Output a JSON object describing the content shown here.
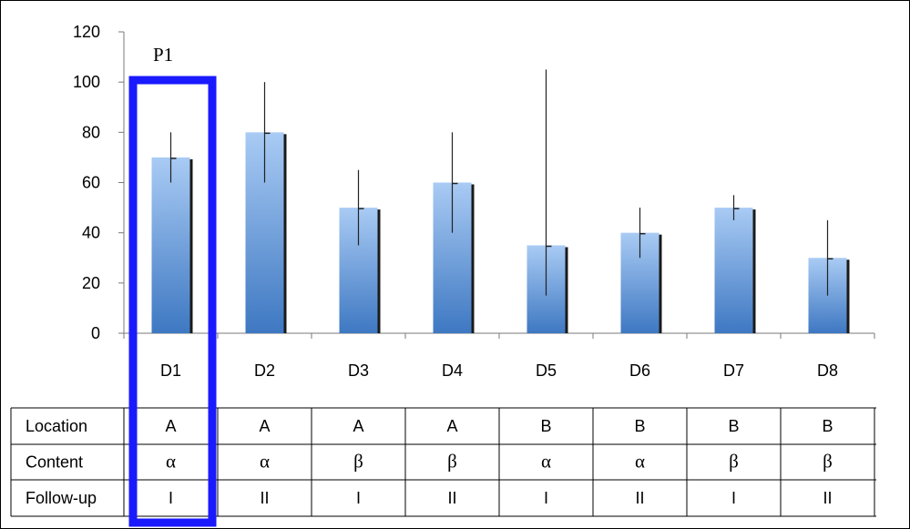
{
  "chart_data": {
    "type": "bar",
    "title": "",
    "xlabel": "",
    "ylabel": "",
    "ylim": [
      0,
      120
    ],
    "yticks": [
      0,
      20,
      40,
      60,
      80,
      100,
      120
    ],
    "categories": [
      "D1",
      "D2",
      "D3",
      "D4",
      "D5",
      "D6",
      "D7",
      "D8"
    ],
    "values": [
      70,
      80,
      50,
      60,
      35,
      40,
      50,
      30
    ],
    "error_low": [
      60,
      60,
      35,
      40,
      15,
      30,
      45,
      15
    ],
    "error_high": [
      80,
      100,
      65,
      80,
      105,
      50,
      55,
      45
    ],
    "grid": false,
    "bar_color_top": "#a9cbf4",
    "bar_color_bottom": "#3e78c2"
  },
  "table": {
    "rows": [
      {
        "label": "Location",
        "cells": [
          "A",
          "A",
          "A",
          "A",
          "B",
          "B",
          "B",
          "B"
        ]
      },
      {
        "label": "Content",
        "cells": [
          "α",
          "α",
          "β",
          "β",
          "α",
          "α",
          "β",
          "β"
        ]
      },
      {
        "label": "Follow-up",
        "cells": [
          "I",
          "II",
          "I",
          "II",
          "I",
          "II",
          "I",
          "II"
        ]
      }
    ]
  },
  "highlight": {
    "label": "P1",
    "category": "D1",
    "color": "#1a1aff"
  }
}
